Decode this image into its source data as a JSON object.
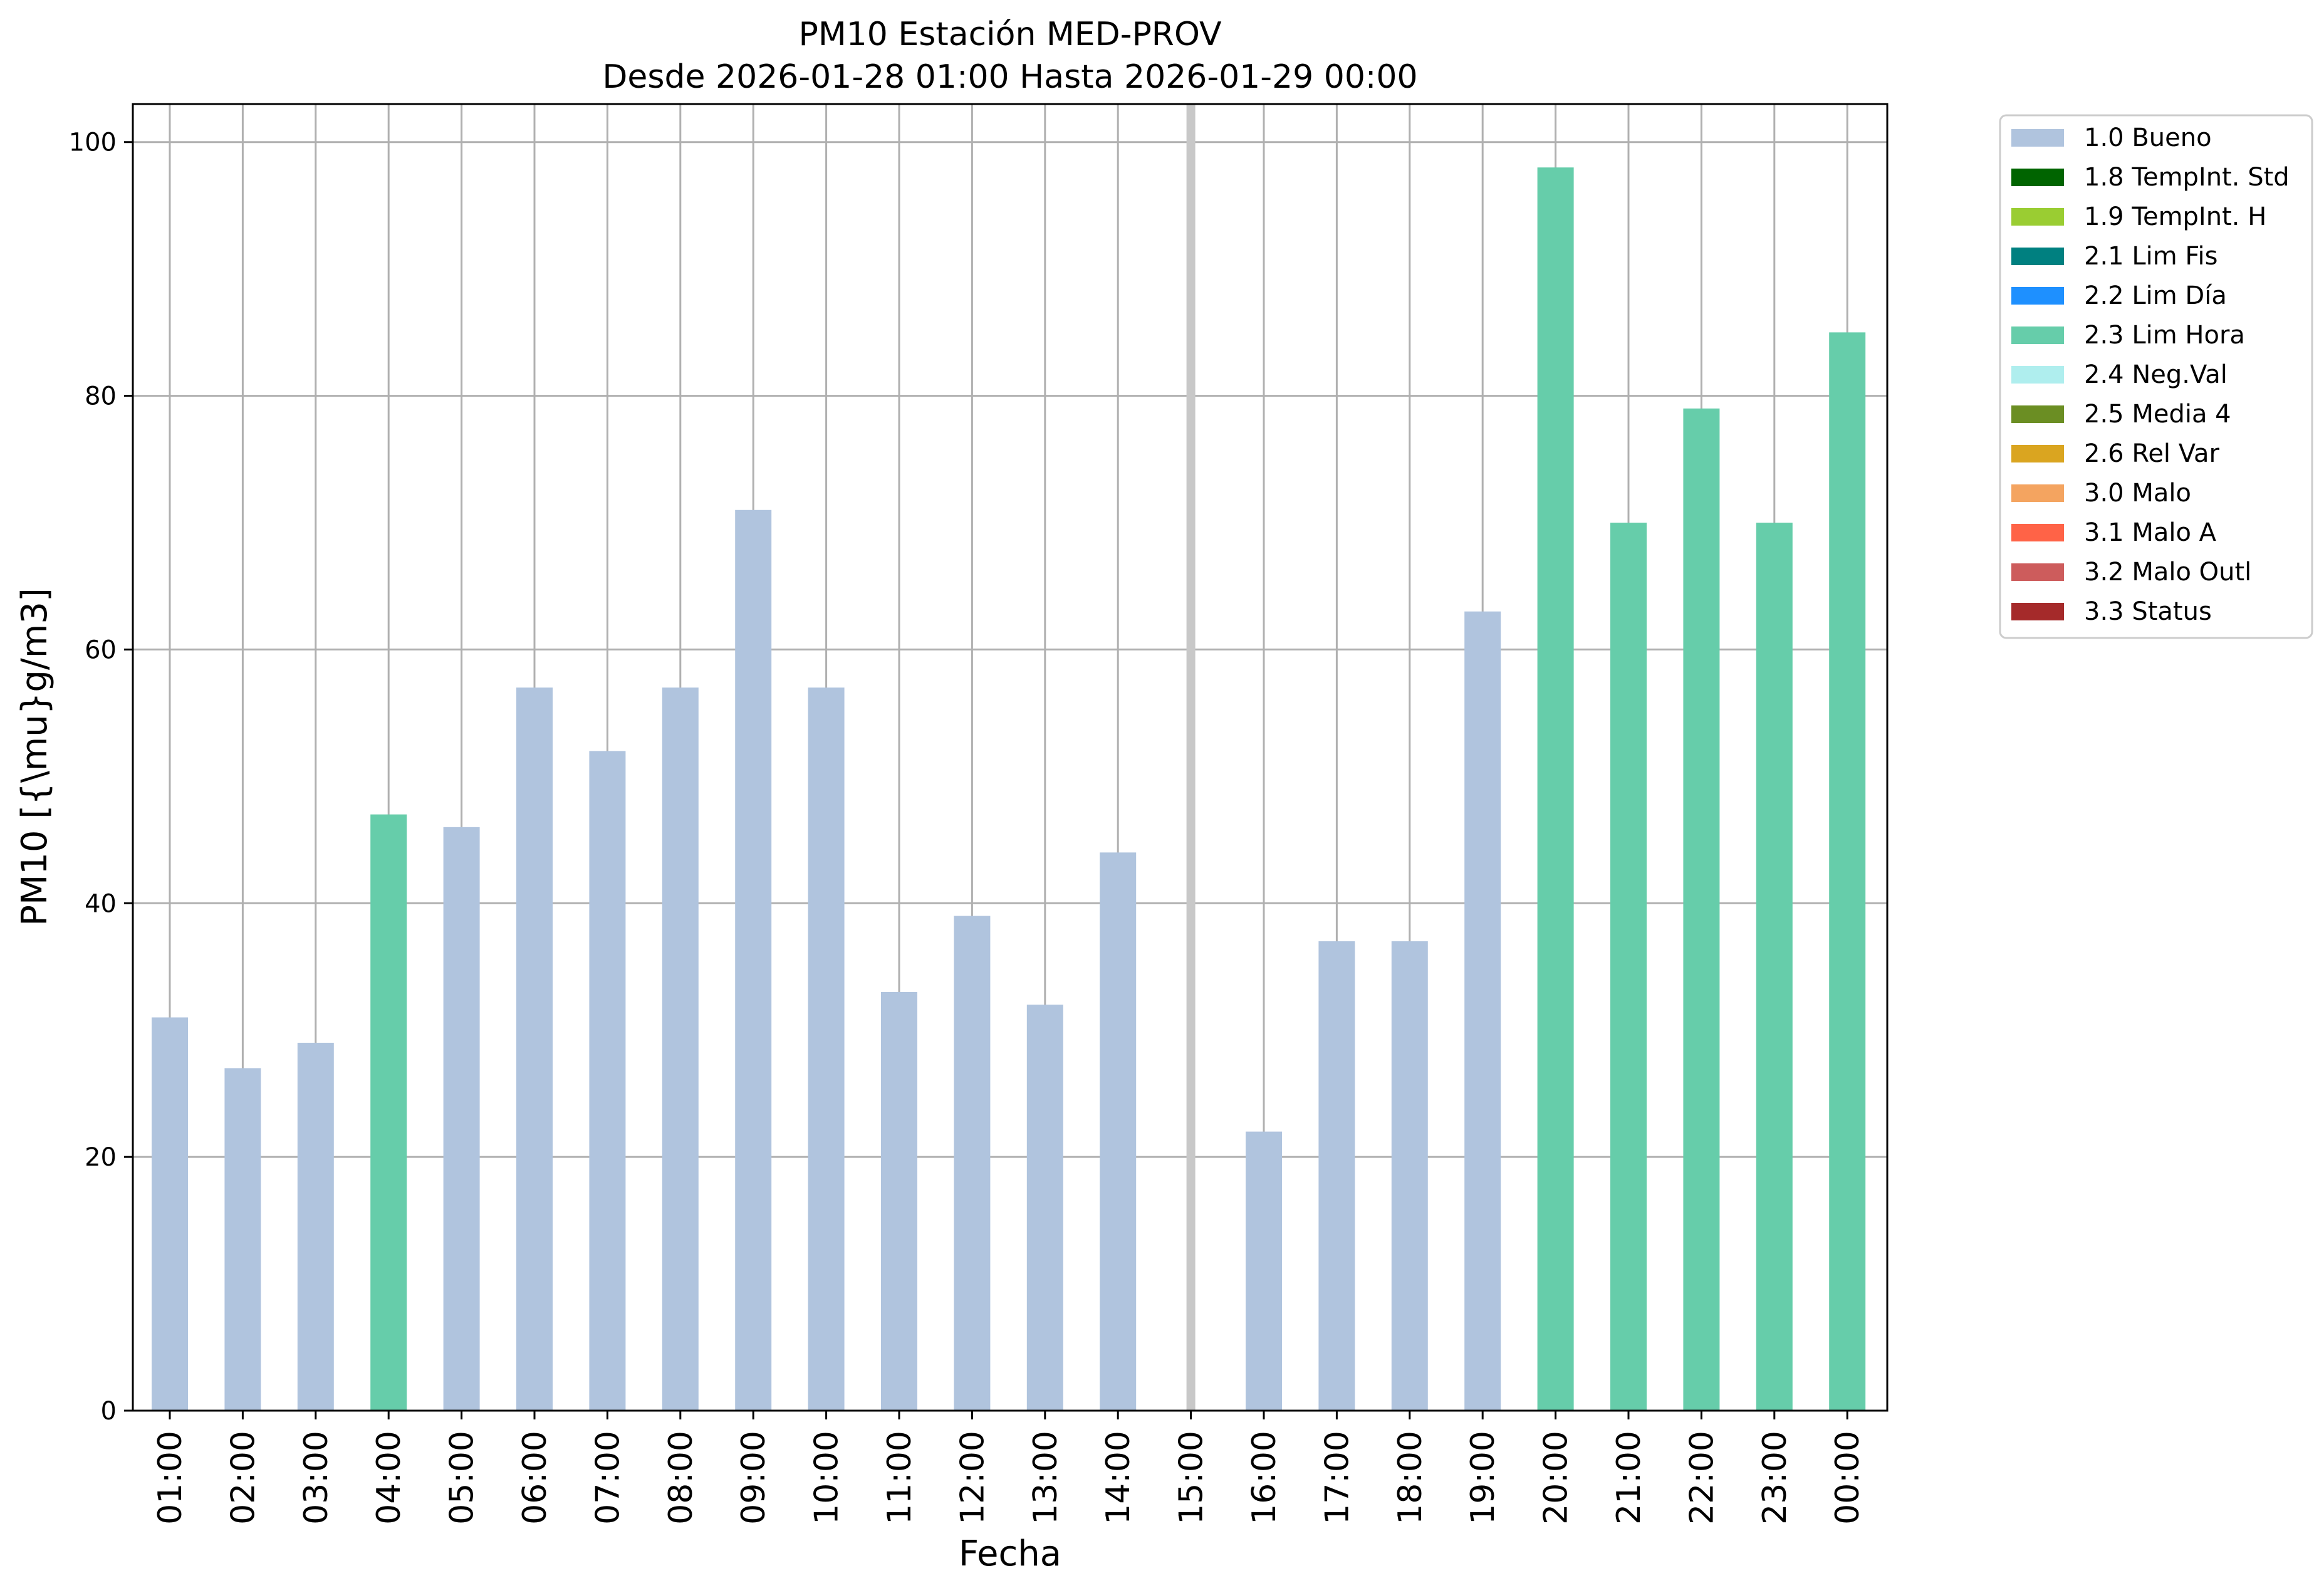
{
  "chart_data": {
    "type": "bar",
    "title": "PM10 Estación MED-PROV",
    "subtitle": "Desde 2026-01-28 01:00 Hasta 2026-01-29 00:00",
    "xlabel": "Fecha",
    "ylabel": "PM10 [{\\mu}g/m3]",
    "ylim": [
      0,
      103
    ],
    "yticks": [
      0,
      20,
      40,
      60,
      80,
      100
    ],
    "grid": true,
    "legend_position": "outside-top-right",
    "categories": [
      "01:00",
      "02:00",
      "03:00",
      "04:00",
      "05:00",
      "06:00",
      "07:00",
      "08:00",
      "09:00",
      "10:00",
      "11:00",
      "12:00",
      "13:00",
      "14:00",
      "15:00",
      "16:00",
      "17:00",
      "18:00",
      "19:00",
      "20:00",
      "21:00",
      "22:00",
      "23:00",
      "00:00"
    ],
    "values": [
      31,
      27,
      29,
      47,
      46,
      57,
      52,
      57,
      71,
      57,
      33,
      39,
      32,
      44,
      null,
      22,
      37,
      37,
      63,
      98,
      70,
      79,
      70,
      85
    ],
    "flags": [
      "1.0 Bueno",
      "1.0 Bueno",
      "1.0 Bueno",
      "2.3 Lim Hora",
      "1.0 Bueno",
      "1.0 Bueno",
      "1.0 Bueno",
      "1.0 Bueno",
      "1.0 Bueno",
      "1.0 Bueno",
      "1.0 Bueno",
      "1.0 Bueno",
      "1.0 Bueno",
      "1.0 Bueno",
      null,
      "1.0 Bueno",
      "1.0 Bueno",
      "1.0 Bueno",
      "1.0 Bueno",
      "2.3 Lim Hora",
      "2.3 Lim Hora",
      "2.3 Lim Hora",
      "2.3 Lim Hora",
      "2.3 Lim Hora"
    ],
    "highlight_category": "15:00",
    "legend": [
      {
        "label": "1.0 Bueno",
        "color": "#b0c4de"
      },
      {
        "label": "1.8 TempInt. Std",
        "color": "#006400"
      },
      {
        "label": "1.9 TempInt. H",
        "color": "#9acd32"
      },
      {
        "label": "2.1 Lim Fis",
        "color": "#008080"
      },
      {
        "label": "2.2 Lim Día",
        "color": "#1e90ff"
      },
      {
        "label": "2.3 Lim Hora",
        "color": "#66cdaa"
      },
      {
        "label": "2.4 Neg.Val",
        "color": "#afeeee"
      },
      {
        "label": "2.5 Media 4",
        "color": "#6b8e23"
      },
      {
        "label": "2.6 Rel Var",
        "color": "#daa520"
      },
      {
        "label": "3.0 Malo",
        "color": "#f4a460"
      },
      {
        "label": "3.1 Malo A",
        "color": "#ff6347"
      },
      {
        "label": "3.2 Malo Outl",
        "color": "#cd5c5c"
      },
      {
        "label": "3.3 Status",
        "color": "#a52a2a"
      }
    ]
  }
}
